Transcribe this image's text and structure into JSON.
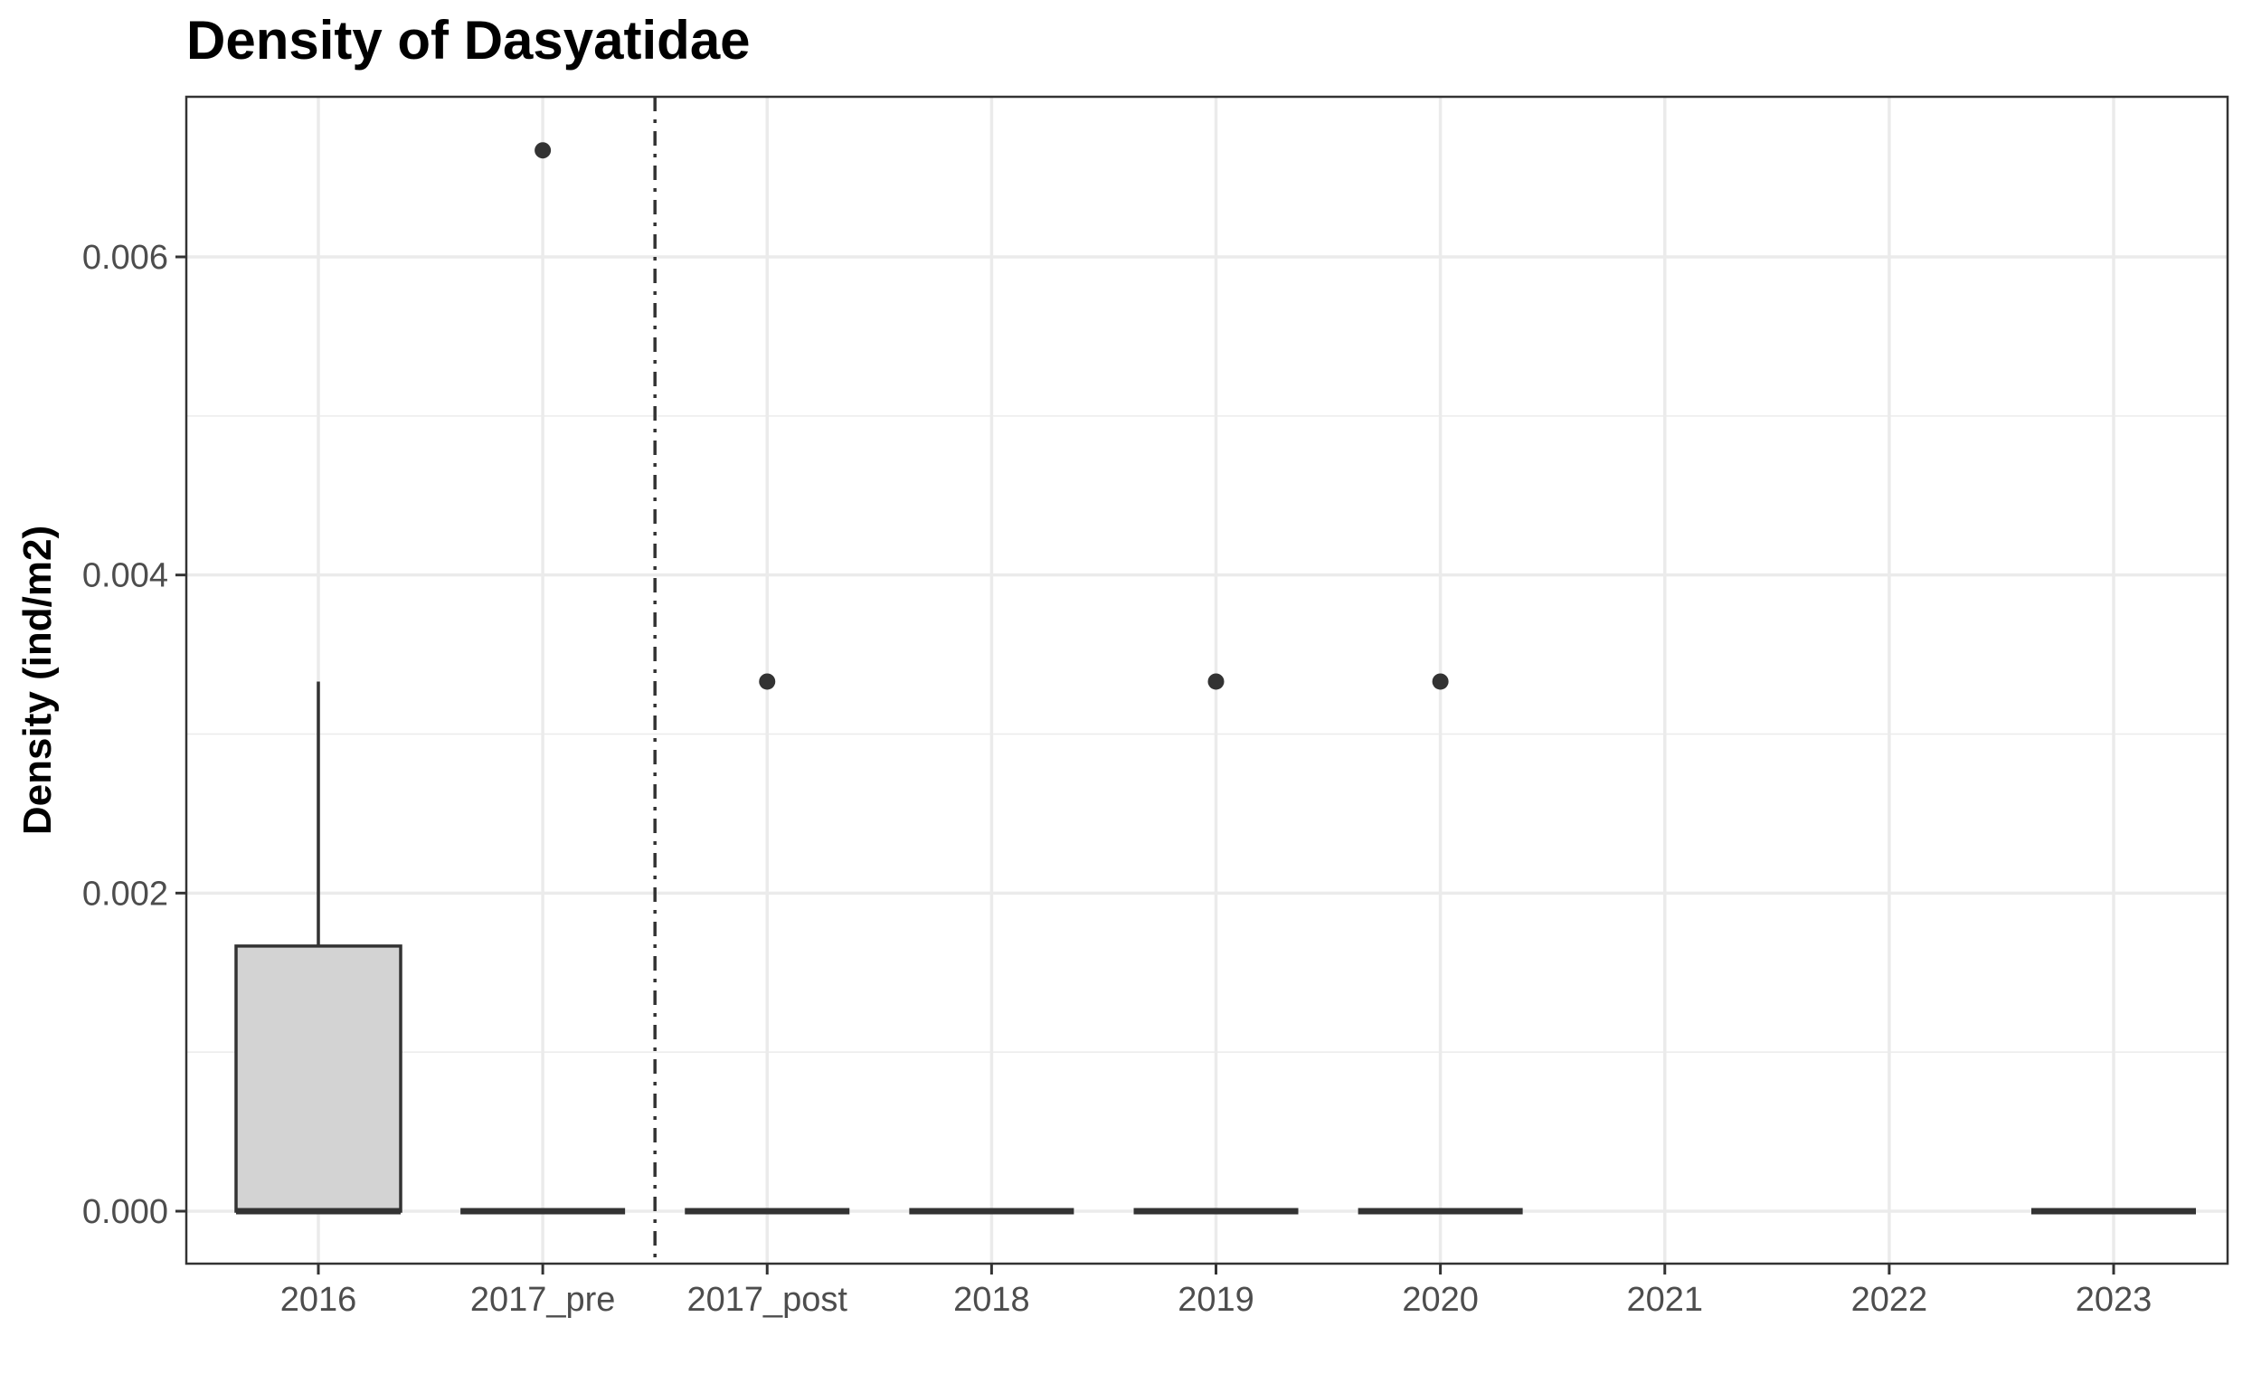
{
  "chart_data": {
    "type": "box",
    "title": "Density of Dasyatidae",
    "xlabel": "",
    "ylabel": "Density (ind/m2)",
    "categories": [
      "2016",
      "2017_pre",
      "2017_post",
      "2018",
      "2019",
      "2020",
      "2021",
      "2022",
      "2023"
    ],
    "ylim": [
      -0.00033,
      0.007
    ],
    "yticks": [
      0.0,
      0.002,
      0.004,
      0.006
    ],
    "ytick_labels": [
      "0.000",
      "0.002",
      "0.004",
      "0.006"
    ],
    "grid": true,
    "legend": "none",
    "boxes": [
      {
        "category": "2016",
        "q1": 0,
        "median": 0,
        "q3": 0.001667,
        "whisker_low": 0,
        "whisker_high": 0.00333,
        "outliers": []
      },
      {
        "category": "2017_pre",
        "q1": 0,
        "median": 0,
        "q3": 0,
        "whisker_low": 0,
        "whisker_high": 0,
        "outliers": [
          0.00667
        ]
      },
      {
        "category": "2017_post",
        "q1": 0,
        "median": 0,
        "q3": 0,
        "whisker_low": 0,
        "whisker_high": 0,
        "outliers": [
          0.00333
        ]
      },
      {
        "category": "2018",
        "q1": 0,
        "median": 0,
        "q3": 0,
        "whisker_low": 0,
        "whisker_high": 0,
        "outliers": []
      },
      {
        "category": "2019",
        "q1": 0,
        "median": 0,
        "q3": 0,
        "whisker_low": 0,
        "whisker_high": 0,
        "outliers": [
          0.00333
        ]
      },
      {
        "category": "2020",
        "q1": 0,
        "median": 0,
        "q3": 0,
        "whisker_low": 0,
        "whisker_high": 0,
        "outliers": [
          0.00333
        ]
      },
      {
        "category": "2023",
        "q1": 0,
        "median": 0,
        "q3": 0,
        "whisker_low": 0,
        "whisker_high": 0,
        "outliers": []
      }
    ],
    "reference_line": {
      "type": "vertical",
      "between": [
        "2017_pre",
        "2017_post"
      ],
      "style": "dashdot"
    },
    "colors": {
      "box_fill": "#d3d3d3",
      "line": "#333333",
      "grid": "#ebebeb",
      "text": "#4d4d4d",
      "title": "#000000"
    }
  }
}
